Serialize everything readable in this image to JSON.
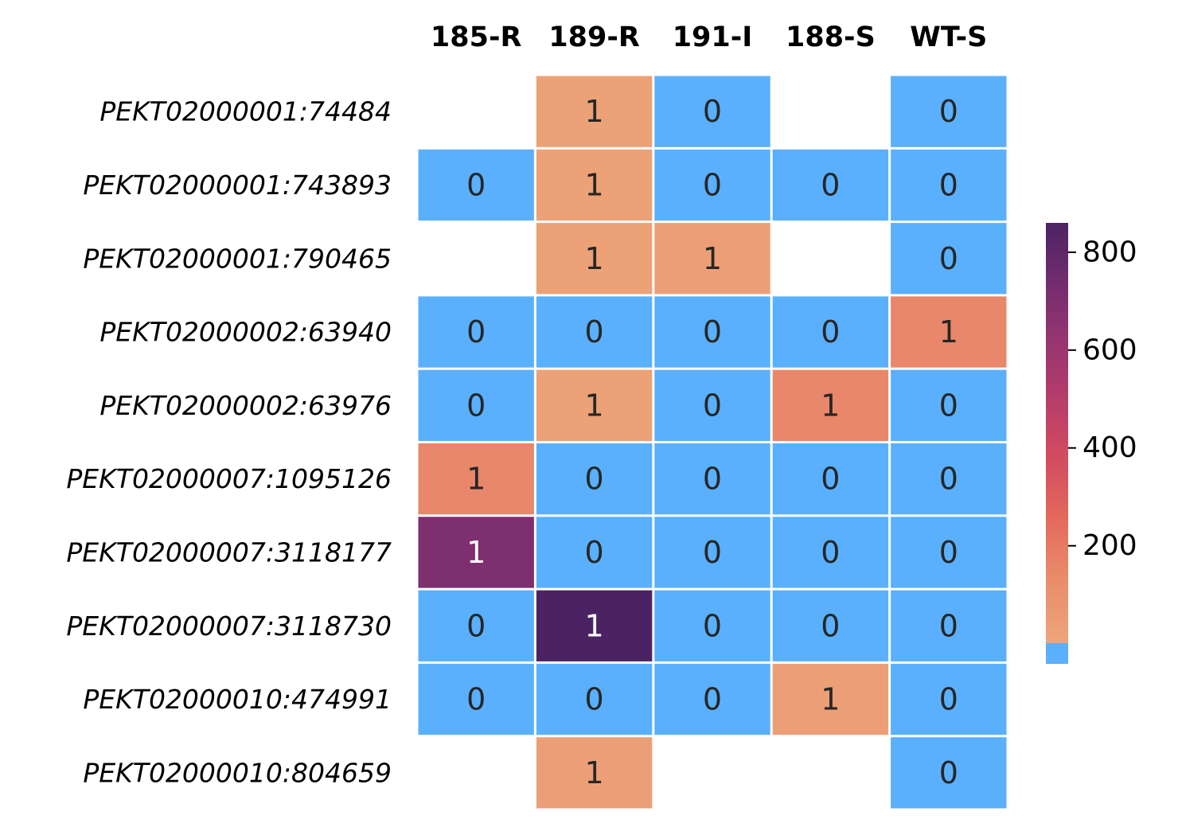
{
  "chart_data": {
    "type": "heatmap",
    "title": "",
    "columns": [
      "185-R",
      "189-R",
      "191-I",
      "188-S",
      "WT-S"
    ],
    "rows": [
      "PEKT02000001:74484",
      "PEKT02000001:743893",
      "PEKT02000001:790465",
      "PEKT02000002:63940",
      "PEKT02000002:63976",
      "PEKT02000007:1095126",
      "PEKT02000007:3118177",
      "PEKT02000007:3118730",
      "PEKT02000010:474991",
      "PEKT02000010:804659"
    ],
    "annotations": [
      [
        null,
        1,
        0,
        null,
        0
      ],
      [
        0,
        1,
        0,
        0,
        0
      ],
      [
        null,
        1,
        1,
        null,
        0
      ],
      [
        0,
        0,
        0,
        0,
        1
      ],
      [
        0,
        1,
        0,
        1,
        0
      ],
      [
        1,
        0,
        0,
        0,
        0
      ],
      [
        1,
        0,
        0,
        0,
        0
      ],
      [
        0,
        1,
        0,
        0,
        0
      ],
      [
        0,
        0,
        0,
        1,
        0
      ],
      [
        null,
        1,
        null,
        null,
        0
      ]
    ],
    "color_values": [
      [
        null,
        25,
        0,
        null,
        0
      ],
      [
        0,
        25,
        0,
        0,
        0
      ],
      [
        null,
        25,
        35,
        null,
        0
      ],
      [
        0,
        0,
        0,
        0,
        150
      ],
      [
        0,
        25,
        0,
        150,
        0
      ],
      [
        150,
        0,
        0,
        0,
        0
      ],
      [
        700,
        0,
        0,
        0,
        0
      ],
      [
        0,
        860,
        0,
        0,
        0
      ],
      [
        0,
        0,
        0,
        35,
        0
      ],
      [
        null,
        35,
        null,
        null,
        0
      ]
    ],
    "zero_color": "#5ab0fc",
    "missing_color": "#ffffff",
    "colorbar": {
      "range": [
        1,
        860
      ],
      "ticks": [
        200,
        400,
        600,
        800
      ],
      "tick_labels": [
        "200",
        "400",
        "600",
        "800"
      ],
      "colormap": "flare"
    },
    "colors": {
      "cell_text_light": "#ffffff",
      "cell_text_dark": "#262626"
    }
  }
}
